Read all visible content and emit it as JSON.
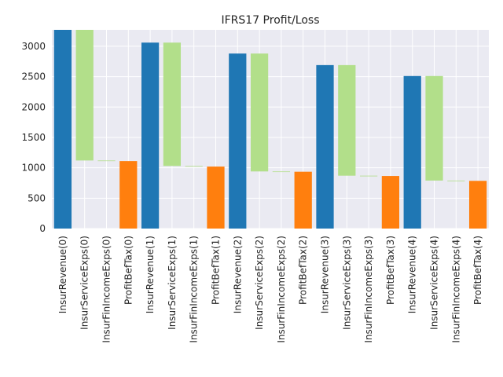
{
  "chart_data": {
    "type": "bar",
    "subtype": "waterfall",
    "title": "IFRS17 Profit/Loss",
    "xlabel": "",
    "ylabel": "",
    "ylim": [
      0,
      3270
    ],
    "yticks": [
      0,
      500,
      1000,
      1500,
      2000,
      2500,
      3000
    ],
    "grid": true,
    "legend": "none",
    "categories": [
      "InsurRevenue(0)",
      "InsurServiceExps(0)",
      "InsurFinIncomeExps(0)",
      "ProfitBefTax(0)",
      "InsurRevenue(1)",
      "InsurServiceExps(1)",
      "InsurFinIncomeExps(1)",
      "ProfitBefTax(1)",
      "InsurRevenue(2)",
      "InsurServiceExps(2)",
      "InsurFinIncomeExps(2)",
      "ProfitBefTax(2)",
      "InsurRevenue(3)",
      "InsurServiceExps(3)",
      "InsurFinIncomeExps(3)",
      "ProfitBefTax(3)",
      "InsurRevenue(4)",
      "InsurServiceExps(4)",
      "InsurFinIncomeExps(4)",
      "ProfitBefTax(4)"
    ],
    "bars": [
      {
        "bottom": 0,
        "top": 3270,
        "kind": "revenue"
      },
      {
        "bottom": 1120,
        "top": 3270,
        "kind": "expense"
      },
      {
        "bottom": 1110,
        "top": 1120,
        "kind": "expense"
      },
      {
        "bottom": 0,
        "top": 1110,
        "kind": "profit"
      },
      {
        "bottom": 0,
        "top": 3060,
        "kind": "revenue"
      },
      {
        "bottom": 1030,
        "top": 3060,
        "kind": "expense"
      },
      {
        "bottom": 1020,
        "top": 1030,
        "kind": "expense"
      },
      {
        "bottom": 0,
        "top": 1020,
        "kind": "profit"
      },
      {
        "bottom": 0,
        "top": 2880,
        "kind": "revenue"
      },
      {
        "bottom": 940,
        "top": 2880,
        "kind": "expense"
      },
      {
        "bottom": 935,
        "top": 940,
        "kind": "expense"
      },
      {
        "bottom": 0,
        "top": 935,
        "kind": "profit"
      },
      {
        "bottom": 0,
        "top": 2690,
        "kind": "revenue"
      },
      {
        "bottom": 870,
        "top": 2690,
        "kind": "expense"
      },
      {
        "bottom": 865,
        "top": 870,
        "kind": "expense"
      },
      {
        "bottom": 0,
        "top": 865,
        "kind": "profit"
      },
      {
        "bottom": 0,
        "top": 2510,
        "kind": "revenue"
      },
      {
        "bottom": 790,
        "top": 2510,
        "kind": "expense"
      },
      {
        "bottom": 785,
        "top": 790,
        "kind": "expense"
      },
      {
        "bottom": 0,
        "top": 785,
        "kind": "profit"
      }
    ],
    "colors": {
      "revenue": "#1f77b4",
      "expense": "#b2df8a",
      "profit": "#ff7f0e",
      "background": "#eaeaf2",
      "grid": "#ffffff",
      "text": "#262626"
    }
  }
}
